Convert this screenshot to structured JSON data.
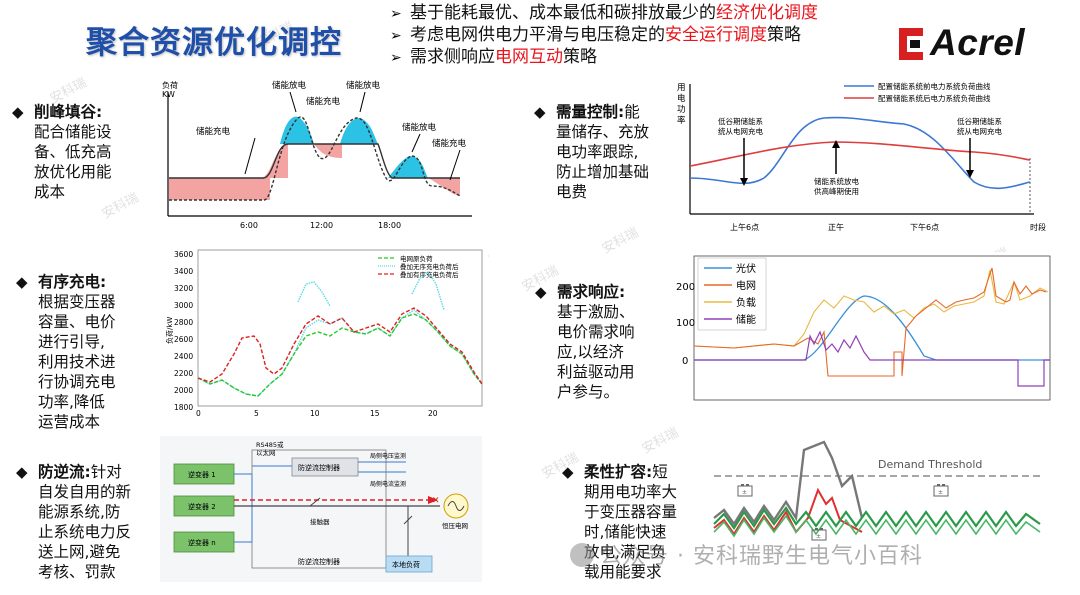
{
  "title": "聚合资源优化调控",
  "bullets": [
    {
      "text_before": "基于能耗最优、成本最低和碳排放最少的",
      "highlight": "经济优化调度",
      "text_after": ""
    },
    {
      "text_before": "考虑电网供电力平滑与电压稳定的",
      "highlight": "安全运行调度",
      "text_after": "策略"
    },
    {
      "text_before": "需求侧响应",
      "highlight": "电网互动",
      "text_after": "策略"
    }
  ],
  "logo": {
    "text": "Acrel",
    "accent": "#d92020"
  },
  "colors": {
    "title": "#1f4fa8",
    "highlight": "#e8141b"
  },
  "left_items": [
    {
      "head": "削峰填谷:",
      "lines": [
        "配合储能设",
        "备、低充高",
        "放优化用能",
        "成本"
      ]
    },
    {
      "head": "有序充电:",
      "lines": [
        "根据变压器",
        "容量、电价",
        "进行引导,",
        "利用技术进",
        "行协调充电",
        "功率,降低",
        "运营成本"
      ]
    },
    {
      "head": "防逆流:",
      "head_rest": "针对",
      "lines": [
        "自发自用的新",
        "能源系统,防",
        "止系统电力反",
        "送上网,避免",
        "考核、罚款"
      ]
    }
  ],
  "right_items": [
    {
      "head": "需量控制:",
      "head_rest": "能",
      "lines": [
        "量储存、充放",
        "电功率跟踪,",
        "防止增加基础",
        "电费"
      ]
    },
    {
      "head": "需求响应:",
      "lines": [
        "基于激励、",
        "电价需求响",
        "应,以经济",
        "利益驱动用",
        "户参与。"
      ]
    },
    {
      "head": "柔性扩容:",
      "head_rest": "短",
      "lines": [
        "期用电功率大",
        "于变压器容量",
        "时,储能快速",
        "放电,满足负",
        "载用能要求"
      ]
    }
  ],
  "chart_peak": {
    "ylabel_lines": [
      "负荷",
      "KW"
    ],
    "ticks": [
      "6:00",
      "12:00",
      "18:00"
    ],
    "labels": [
      "储能充电",
      "储能放电",
      "储能充电",
      "储能放电",
      "储能放电",
      "储能充电"
    ]
  },
  "chart_demand": {
    "ylabel_lines": [
      "用",
      "电",
      "功",
      "率"
    ],
    "legend": [
      "配置储能系统前电力系统负荷曲线",
      "配置储能系统后电力系统负荷曲线"
    ],
    "notes": [
      [
        "低谷期储能系",
        "统从电网充电"
      ],
      [
        "储能系统放电",
        "供高峰期使用"
      ],
      [
        "低谷期储能系",
        "统从电网充电"
      ]
    ],
    "xticks": [
      "上午6点",
      "正午",
      "下午6点",
      "时段"
    ]
  },
  "chart_charging": {
    "type": "line",
    "ylabel": "负荷/kW",
    "yticks": [
      "1800",
      "2000",
      "2200",
      "2400",
      "2600",
      "2800",
      "3000",
      "3200",
      "3400",
      "3600"
    ],
    "xticks": [
      "0",
      "5",
      "10",
      "15",
      "20"
    ],
    "legend": [
      "电网原负荷",
      "叠加无序充电负荷后",
      "叠加有序充电负荷后"
    ]
  },
  "chart_response": {
    "type": "line",
    "yticks": [
      "200",
      "100",
      "0"
    ],
    "legend": [
      "光伏",
      "电网",
      "负载",
      "储能"
    ]
  },
  "diagram_antiback": {
    "top_label_lines": [
      "RS485或",
      "以太网"
    ],
    "inverters": [
      "逆变器 1",
      "逆变器 2",
      "逆变器 n"
    ],
    "controller": "防逆流控制器",
    "boxes": [
      "局侧电压监测",
      "局侧电流监测"
    ],
    "contactor": "接触器",
    "grid": "恒压电网",
    "load": "本地负荷",
    "bottom": "防逆流控制器"
  },
  "diagram_flex": {
    "threshold_label": "Demand Threshold"
  },
  "footer": {
    "text": "公众号 · 安科瑞野生电气小百科"
  },
  "watermark": "安科瑞"
}
